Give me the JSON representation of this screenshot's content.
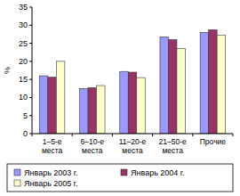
{
  "chart_data": {
    "type": "bar",
    "y_label": "%",
    "categories": [
      "1–5-е места",
      "6–10-е места",
      "11–20-е места",
      "21–50-е места",
      "Прочие"
    ],
    "series": [
      {
        "name": "Январь 2003 г.",
        "color": "#9999ff",
        "values": [
          16,
          12.5,
          17.2,
          26.8,
          28
        ]
      },
      {
        "name": "Январь 2004 г.",
        "color": "#993366",
        "values": [
          15.6,
          12.7,
          17,
          26,
          28.7
        ]
      },
      {
        "name": "Январь 2005 г.",
        "color": "#ffffcc",
        "values": [
          20,
          13.3,
          15.5,
          23.5,
          27.3
        ]
      }
    ],
    "ylim": [
      0,
      35
    ],
    "yticks": [
      0,
      5,
      10,
      15,
      20,
      25,
      30,
      35
    ],
    "grid": false,
    "legend": "bottom"
  }
}
